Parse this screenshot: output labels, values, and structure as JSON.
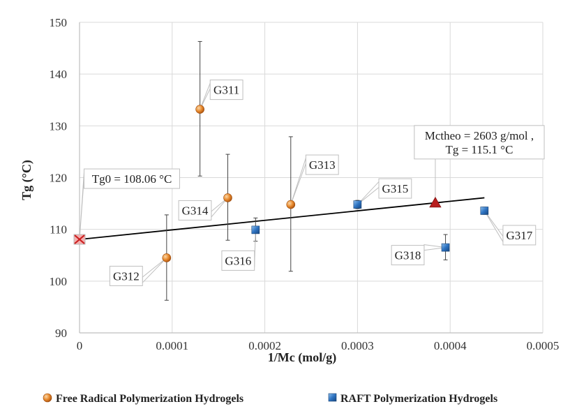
{
  "chart_data": {
    "type": "scatter",
    "xlabel": "1/Mc (mol/g)",
    "ylabel": "Tg  (°C)",
    "xlim": [
      0,
      0.0005
    ],
    "ylim": [
      90,
      150
    ],
    "x_ticks": [
      "0",
      "0.0001",
      "0.0002",
      "0.0003",
      "0.0004",
      "0.0005"
    ],
    "y_ticks": [
      "90",
      "100",
      "110",
      "120",
      "130",
      "140",
      "150"
    ],
    "grid": true,
    "legend_position": "bottom",
    "series": [
      {
        "name": "Free Radical Polymerization Hydrogels",
        "marker": "circle",
        "color": "#E07B1F",
        "points": [
          {
            "label": "G311",
            "x": 0.00013,
            "y": 133.2,
            "err_low": 120.3,
            "err_high": 146.3
          },
          {
            "label": "G312",
            "x": 9.4e-05,
            "y": 104.5,
            "err_low": 96.3,
            "err_high": 112.8
          },
          {
            "label": "G313",
            "x": 0.000228,
            "y": 114.8,
            "err_low": 101.9,
            "err_high": 127.9
          },
          {
            "label": "G314",
            "x": 0.00016,
            "y": 116.1,
            "err_low": 107.9,
            "err_high": 124.5
          }
        ]
      },
      {
        "name": "RAFT Polymerization Hydrogels",
        "marker": "square",
        "color": "#2E6DB4",
        "points": [
          {
            "label": "G315",
            "x": 0.0003,
            "y": 114.8,
            "err_low": 114.0,
            "err_high": 115.6
          },
          {
            "label": "G316",
            "x": 0.00019,
            "y": 109.9,
            "err_low": 107.7,
            "err_high": 112.2
          },
          {
            "label": "G317",
            "x": 0.000437,
            "y": 113.6,
            "err_low": 112.9,
            "err_high": 114.3
          },
          {
            "label": "G318",
            "x": 0.000395,
            "y": 106.5,
            "err_low": 104.1,
            "err_high": 109.0
          }
        ]
      }
    ],
    "trendline": {
      "x": [
        0,
        0.000437
      ],
      "y": [
        108.06,
        116.1
      ],
      "color": "#000000"
    },
    "special_points": [
      {
        "label": "Tg0 = 108.06 °C",
        "x": 0,
        "y": 108.06,
        "marker": "x-square",
        "color": "#CC1F1F"
      },
      {
        "label": "Mctheo = 2603 g/mol ,\nTg = 115.1 °C",
        "x": 0.000384,
        "y": 115.1,
        "marker": "triangle",
        "color": "#B81E1E"
      }
    ]
  }
}
